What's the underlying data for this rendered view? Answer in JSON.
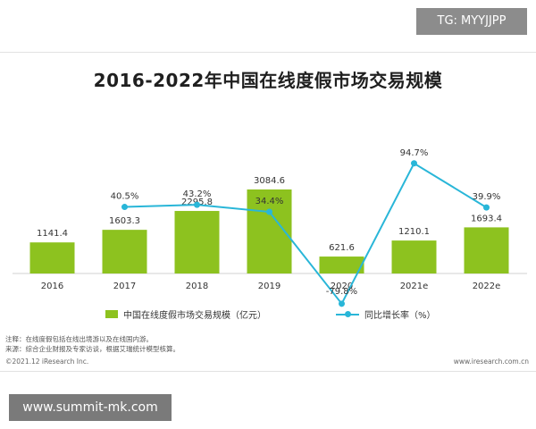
{
  "chart_data": {
    "type": "bar",
    "title": "2016-2022年中国在线度假市场交易规模",
    "categories": [
      "2016",
      "2017",
      "2018",
      "2019",
      "2020",
      "2021e",
      "2022e"
    ],
    "series": [
      {
        "name": "中国在线度假市场交易规模（亿元）",
        "type": "bar",
        "color": "#8dc21f",
        "values": [
          1141.4,
          1603.3,
          2295.8,
          3084.6,
          621.6,
          1210.1,
          1693.4
        ],
        "labels": [
          "1141.4",
          "1603.3",
          "2295.8",
          "3084.6",
          "621.6",
          "1210.1",
          "1693.4"
        ]
      },
      {
        "name": "同比增长率（%）",
        "type": "line",
        "color": "#29b6d8",
        "values": [
          null,
          40.5,
          43.2,
          34.4,
          -79.8,
          94.7,
          39.9
        ],
        "labels": [
          null,
          "40.5%",
          "43.2%",
          "34.4%",
          "-79.8%",
          "94.7%",
          "39.9%"
        ]
      }
    ],
    "ylim_bar": [
      0,
      3400
    ],
    "ylim_line": [
      -100,
      100
    ],
    "legend": "bottom",
    "grid": false
  },
  "notes": {
    "line1": "注释：在线度假包括在线出境游以及在线国内游。",
    "line2": "来源：综合企业财报及专家访谈，根据艾瑞统计模型核算。"
  },
  "footer": {
    "copyright": "©2021.12 iResearch Inc.",
    "website": "www.iresearch.com.cn"
  },
  "watermarks": {
    "top_right": "TG: MYYJJPP",
    "bottom_left": "www.summit-mk.com"
  }
}
